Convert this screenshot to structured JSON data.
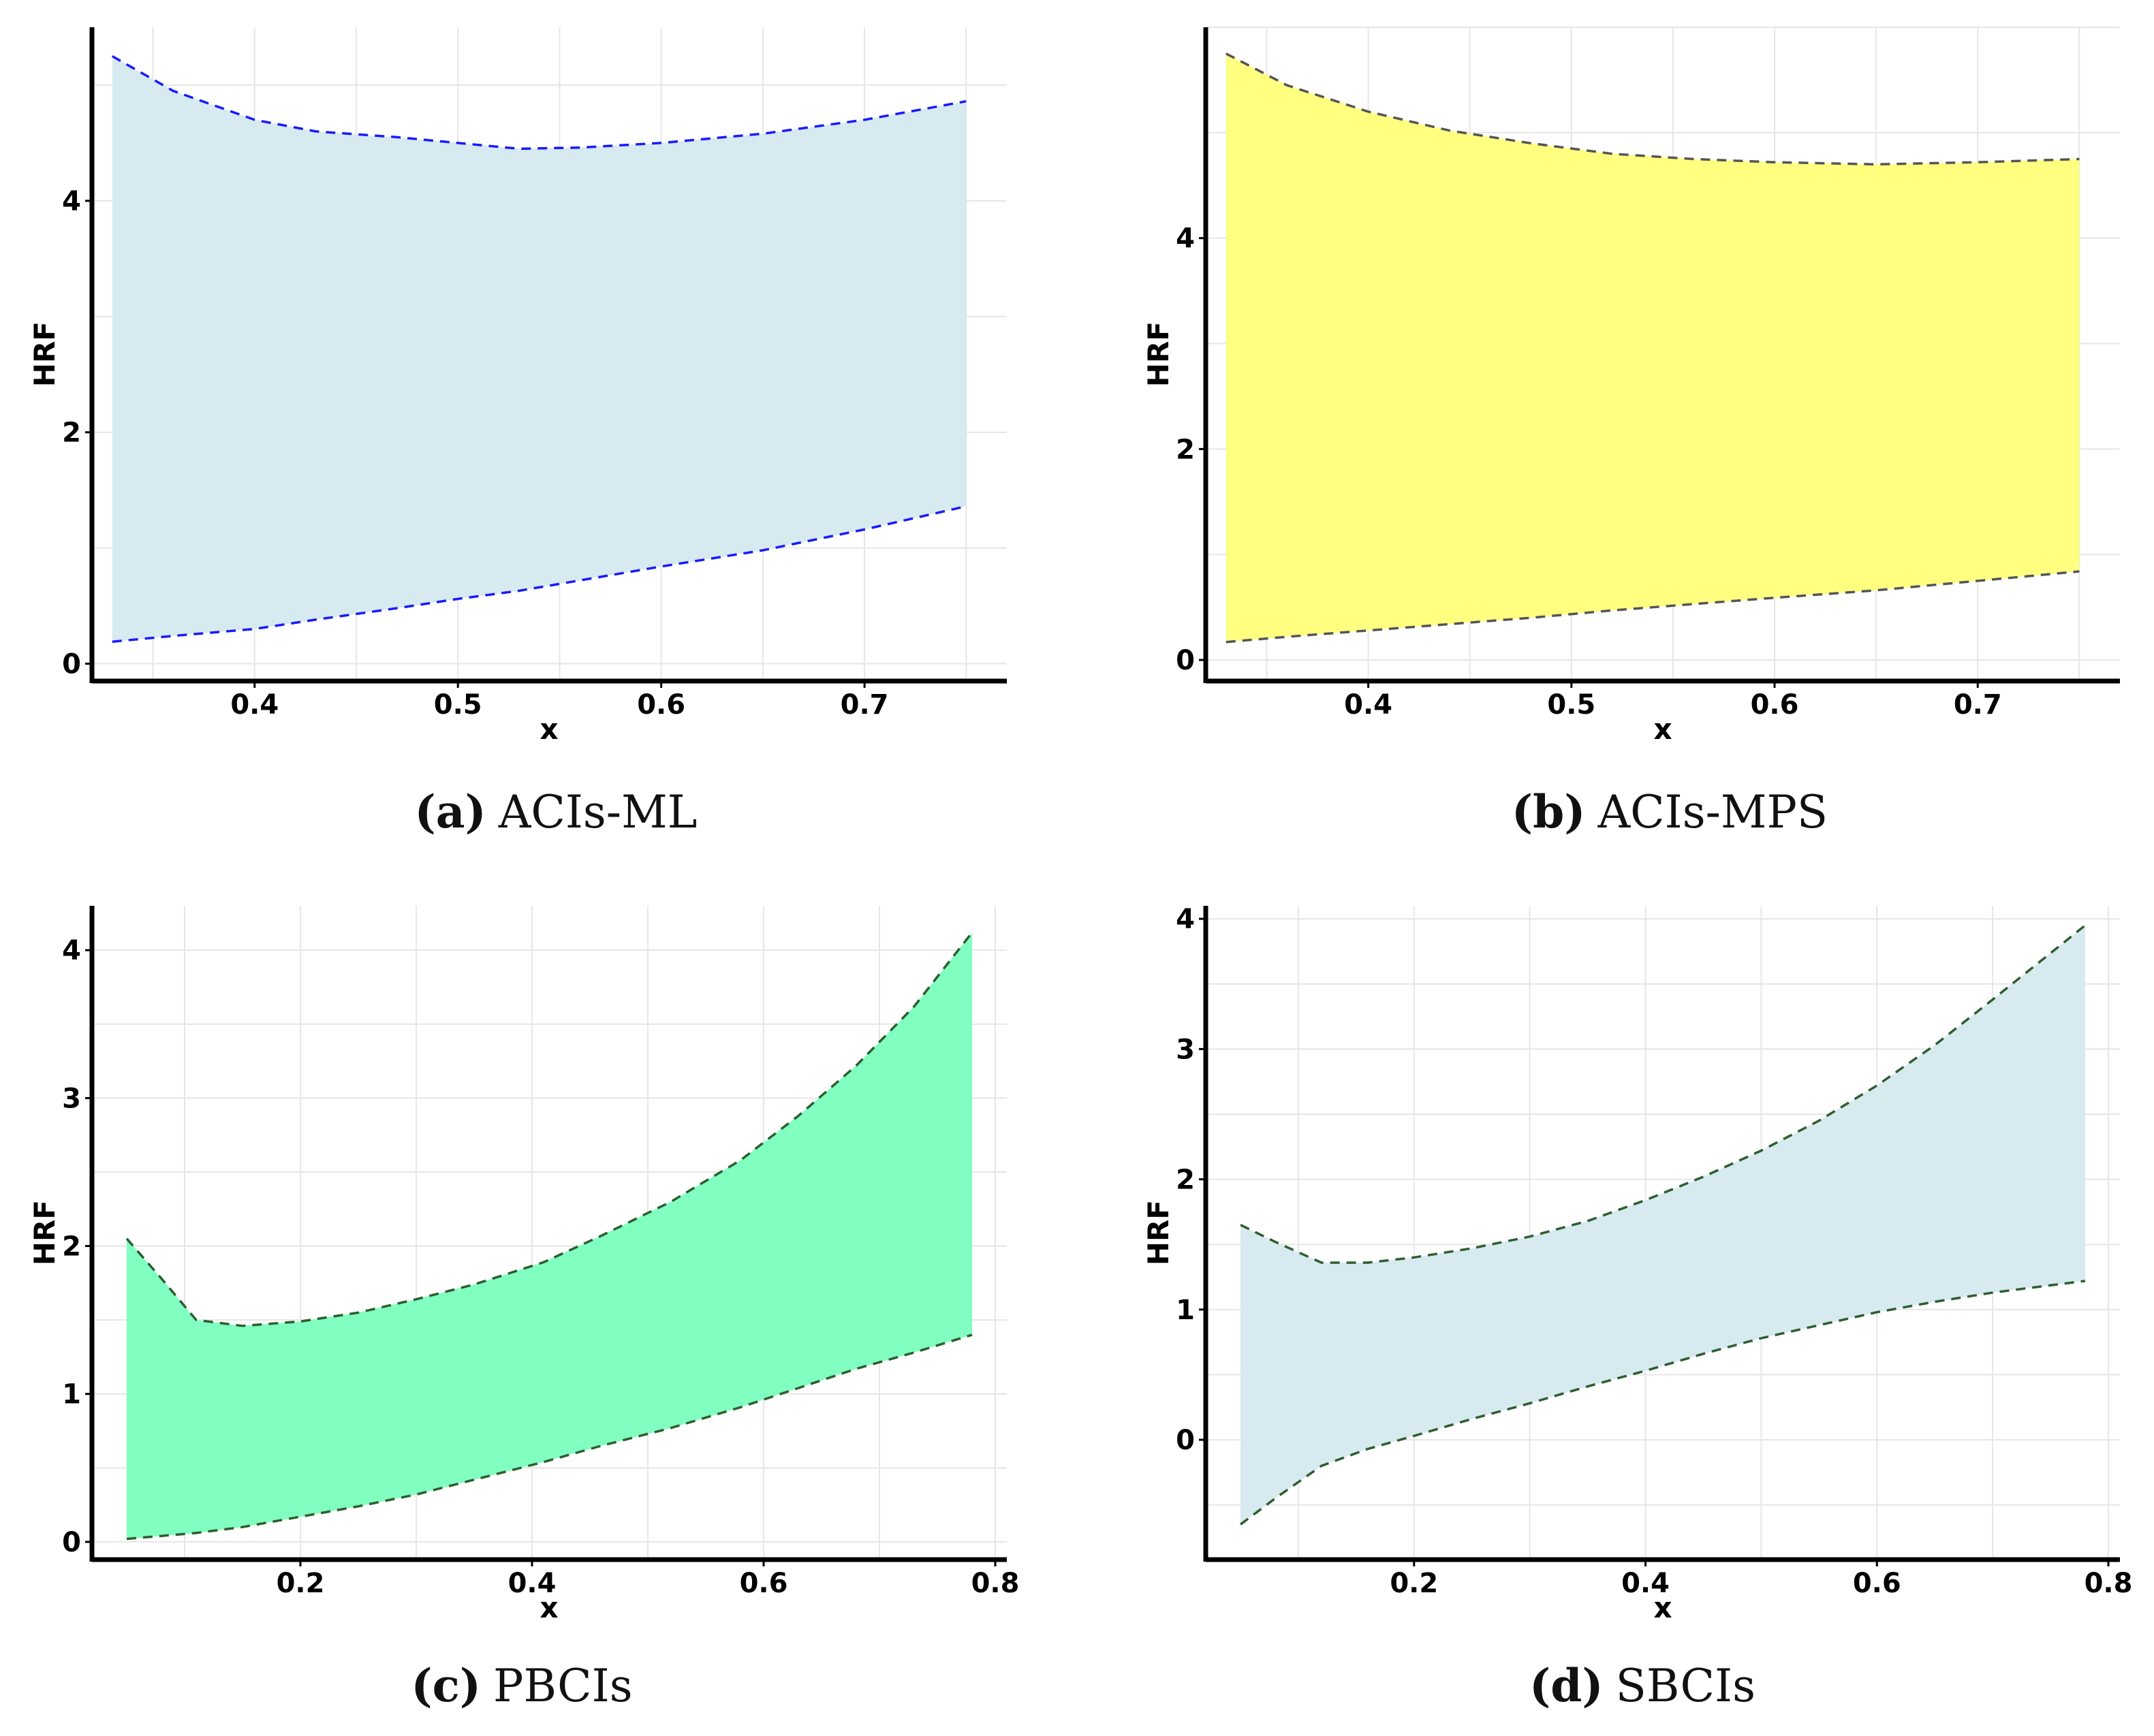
{
  "figure_panels": [
    "(a)",
    "(b)",
    "(c)",
    "(d)"
  ],
  "chart_data": [
    {
      "id": "a",
      "type": "area",
      "caption_letter": "(a)",
      "caption_text": "ACIs-ML",
      "xlabel": "x",
      "ylabel": "HRF",
      "xlim": [
        0.32,
        0.77
      ],
      "ylim": [
        -0.15,
        5.5
      ],
      "xticks": [
        0.4,
        0.5,
        0.6,
        0.7
      ],
      "xtick_labels": [
        "0.4",
        "0.5",
        "0.6",
        "0.7"
      ],
      "yticks": [
        0,
        2,
        4
      ],
      "ytick_labels": [
        "0",
        "2",
        "4"
      ],
      "grid": true,
      "fill_color": "#d6eaf0",
      "line_color": "#1a1aff",
      "x": [
        0.33,
        0.36,
        0.4,
        0.43,
        0.47,
        0.5,
        0.53,
        0.56,
        0.6,
        0.65,
        0.7,
        0.75
      ],
      "upper": [
        5.25,
        4.95,
        4.7,
        4.6,
        4.55,
        4.5,
        4.45,
        4.46,
        4.5,
        4.58,
        4.7,
        4.86
      ],
      "lower": [
        0.19,
        0.24,
        0.3,
        0.38,
        0.48,
        0.56,
        0.63,
        0.72,
        0.84,
        0.98,
        1.16,
        1.36
      ]
    },
    {
      "id": "b",
      "type": "area",
      "caption_letter": "(b)",
      "caption_text": "ACIs-MPS",
      "xlabel": "x",
      "ylabel": "HRF",
      "xlim": [
        0.32,
        0.77
      ],
      "ylim": [
        -0.2,
        6.0
      ],
      "xticks": [
        0.4,
        0.5,
        0.6,
        0.7
      ],
      "xtick_labels": [
        "0.4",
        "0.5",
        "0.6",
        "0.7"
      ],
      "yticks": [
        0,
        2,
        4
      ],
      "ytick_labels": [
        "0",
        "2",
        "4"
      ],
      "grid": true,
      "fill_color": "#ffff80",
      "line_color": "#555555",
      "x": [
        0.33,
        0.36,
        0.4,
        0.44,
        0.48,
        0.52,
        0.56,
        0.6,
        0.65,
        0.7,
        0.75
      ],
      "upper": [
        5.75,
        5.45,
        5.2,
        5.02,
        4.9,
        4.8,
        4.75,
        4.72,
        4.7,
        4.72,
        4.75
      ],
      "lower": [
        0.17,
        0.22,
        0.28,
        0.34,
        0.4,
        0.47,
        0.53,
        0.59,
        0.66,
        0.75,
        0.84
      ]
    },
    {
      "id": "c",
      "type": "area",
      "caption_letter": "(c)",
      "caption_text": "PBCIs",
      "xlabel": "x",
      "ylabel": "HRF",
      "xlim": [
        0.02,
        0.81
      ],
      "ylim": [
        -0.12,
        4.3
      ],
      "xticks": [
        0.2,
        0.4,
        0.6,
        0.8
      ],
      "xtick_labels": [
        "0.2",
        "0.4",
        "0.6",
        "0.8"
      ],
      "yticks": [
        0,
        1,
        2,
        3,
        4
      ],
      "ytick_labels": [
        "0",
        "1",
        "2",
        "3",
        "4"
      ],
      "grid": true,
      "fill_color": "#80ffc0",
      "line_color": "#2e5e2e",
      "x": [
        0.05,
        0.08,
        0.11,
        0.15,
        0.2,
        0.25,
        0.3,
        0.35,
        0.41,
        0.46,
        0.52,
        0.58,
        0.63,
        0.68,
        0.73,
        0.78
      ],
      "upper": [
        2.05,
        1.78,
        1.5,
        1.46,
        1.49,
        1.55,
        1.64,
        1.74,
        1.89,
        2.07,
        2.3,
        2.58,
        2.88,
        3.22,
        3.62,
        4.12
      ],
      "lower": [
        0.02,
        0.04,
        0.06,
        0.1,
        0.17,
        0.24,
        0.32,
        0.42,
        0.54,
        0.65,
        0.77,
        0.91,
        1.04,
        1.17,
        1.28,
        1.4
      ]
    },
    {
      "id": "d",
      "type": "area",
      "caption_letter": "(d)",
      "caption_text": "SBCIs",
      "xlabel": "x",
      "ylabel": "HRF",
      "xlim": [
        0.02,
        0.81
      ],
      "ylim": [
        -0.92,
        4.1
      ],
      "xticks": [
        0.2,
        0.4,
        0.6,
        0.8
      ],
      "xtick_labels": [
        "0.2",
        "0.4",
        "0.6",
        "0.8"
      ],
      "yticks": [
        0,
        1,
        2,
        3,
        4
      ],
      "ytick_labels": [
        "0",
        "1",
        "2",
        "3",
        "4"
      ],
      "grid": true,
      "fill_color": "#d6eaf0",
      "line_color": "#2e5e2e",
      "x": [
        0.05,
        0.08,
        0.12,
        0.16,
        0.2,
        0.25,
        0.3,
        0.35,
        0.4,
        0.45,
        0.5,
        0.55,
        0.6,
        0.65,
        0.7,
        0.78
      ],
      "upper": [
        1.65,
        1.52,
        1.36,
        1.36,
        1.4,
        1.47,
        1.56,
        1.68,
        1.84,
        2.02,
        2.22,
        2.45,
        2.72,
        3.03,
        3.38,
        3.95
      ],
      "lower": [
        -0.65,
        -0.45,
        -0.2,
        -0.07,
        0.03,
        0.16,
        0.28,
        0.41,
        0.53,
        0.66,
        0.78,
        0.88,
        0.98,
        1.06,
        1.13,
        1.22
      ]
    }
  ]
}
